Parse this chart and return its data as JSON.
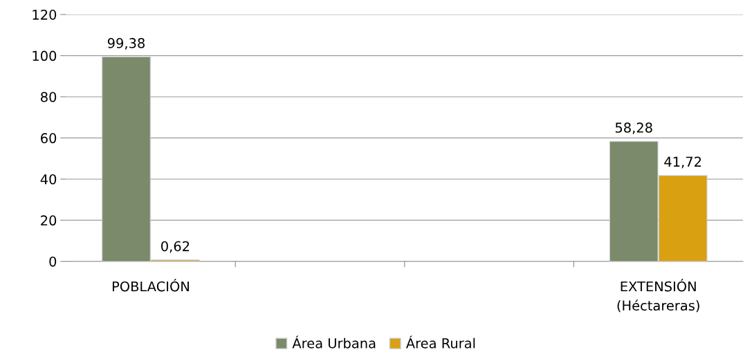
{
  "chart_data": {
    "type": "bar",
    "categories": [
      "POBLACIÓN",
      null,
      null,
      "EXTENSIÓN\n(Héctareras)"
    ],
    "series": [
      {
        "name": "Área Urbana",
        "color": "#7a8a6a",
        "values": [
          99.38,
          null,
          null,
          58.28
        ]
      },
      {
        "name": "Área Rural",
        "color": "#d9a012",
        "values": [
          0.62,
          null,
          null,
          41.72
        ]
      }
    ],
    "value_labels": [
      [
        "99,38",
        null,
        null,
        "58,28"
      ],
      [
        "0,62",
        null,
        null,
        "41,72"
      ]
    ],
    "ylim": [
      0,
      120
    ],
    "yticks": [
      0,
      20,
      40,
      60,
      80,
      100,
      120
    ],
    "grid": "y",
    "legend": "bottom"
  }
}
